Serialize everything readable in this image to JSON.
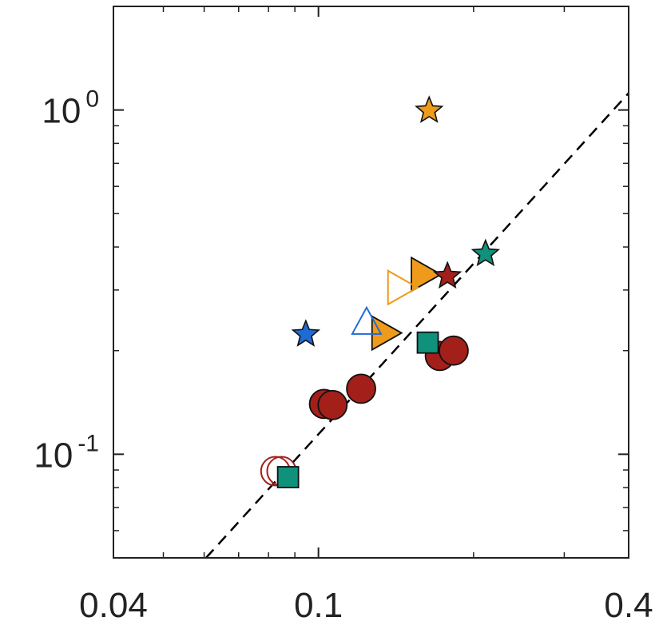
{
  "chart_data": {
    "type": "scatter",
    "title": "",
    "xlabel": "",
    "ylabel": "",
    "x_scale": "log",
    "y_scale": "log",
    "xlim": [
      0.04,
      0.4
    ],
    "ylim": [
      0.05,
      2.0
    ],
    "grid": false,
    "x_ticks": [
      {
        "value": 0.04,
        "label": "0.04"
      },
      {
        "value": 0.1,
        "label": "0.1"
      },
      {
        "value": 0.4,
        "label": "0.4"
      }
    ],
    "y_ticks": [
      {
        "value": 1.0,
        "base": "10",
        "exp": "0"
      },
      {
        "value": 0.1,
        "base": "10",
        "exp": "-1"
      }
    ],
    "reference_line": {
      "style": "dashed",
      "color": "#000000",
      "points": [
        [
          0.0605,
          0.05
        ],
        [
          0.4,
          1.12
        ]
      ]
    },
    "colors": {
      "red": "#a31f1a",
      "orange": "#ee9a1a",
      "teal": "#10917c",
      "blue": "#1f6bd6",
      "axis": "#222222"
    },
    "series": [
      {
        "marker": "circle",
        "filled": true,
        "color": "red",
        "points": [
          [
            0.1025,
            0.14
          ],
          [
            0.1065,
            0.139
          ],
          [
            0.121,
            0.155
          ],
          [
            0.172,
            0.193
          ],
          [
            0.183,
            0.2
          ]
        ]
      },
      {
        "marker": "circle",
        "filled": false,
        "color": "red",
        "points": [
          [
            0.0825,
            0.0893
          ],
          [
            0.0848,
            0.0893
          ]
        ]
      },
      {
        "marker": "square",
        "filled": true,
        "color": "teal",
        "points": [
          [
            0.0873,
            0.0858
          ],
          [
            0.163,
            0.211
          ]
        ]
      },
      {
        "marker": "triangle-right",
        "filled": true,
        "color": "orange",
        "points": [
          [
            0.135,
            0.225
          ],
          [
            0.161,
            0.333
          ]
        ]
      },
      {
        "marker": "triangle-right",
        "filled": false,
        "color": "orange",
        "points": [
          [
            0.145,
            0.305
          ]
        ]
      },
      {
        "marker": "triangle-up",
        "filled": false,
        "color": "blue",
        "points": [
          [
            0.124,
            0.241
          ]
        ]
      },
      {
        "marker": "star",
        "filled": true,
        "color": "orange",
        "points": [
          [
            0.164,
            0.996
          ]
        ]
      },
      {
        "marker": "star",
        "filled": true,
        "color": "red",
        "points": [
          [
            0.178,
            0.329
          ]
        ]
      },
      {
        "marker": "star",
        "filled": true,
        "color": "teal",
        "points": [
          [
            0.211,
            0.382
          ]
        ]
      },
      {
        "marker": "star",
        "filled": true,
        "color": "blue",
        "points": [
          [
            0.0945,
            0.223
          ]
        ]
      }
    ]
  }
}
